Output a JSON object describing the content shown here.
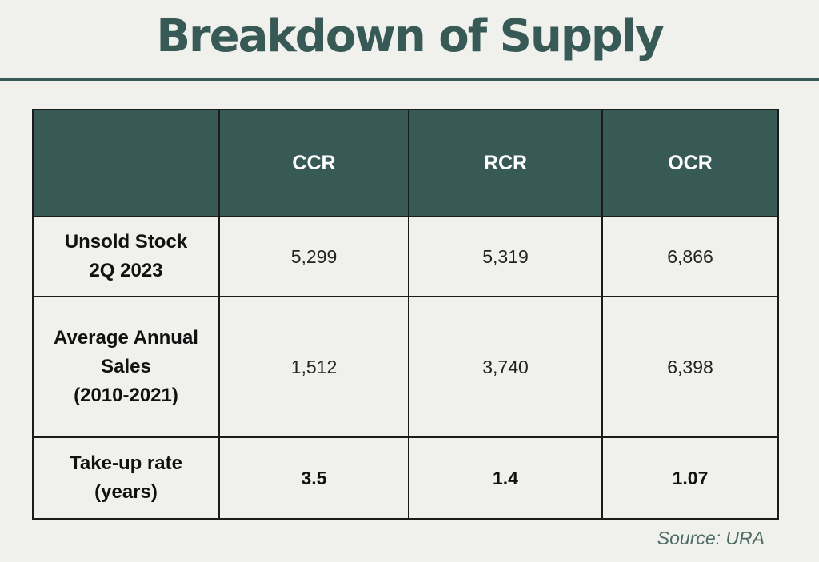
{
  "title": "Breakdown of Supply",
  "colors": {
    "header_bg": "#385a56",
    "title": "#385a56",
    "background": "#f0f0ec"
  },
  "table": {
    "columns": [
      "",
      "CCR",
      "RCR",
      "OCR"
    ],
    "rows": [
      {
        "label_line1": "Unsold Stock",
        "label_line2": "2Q 2023",
        "label_line3": "",
        "values": [
          "5,299",
          "5,319",
          "6,866"
        ]
      },
      {
        "label_line1": "Average Annual",
        "label_line2": "Sales",
        "label_line3": "(2010-2021)",
        "values": [
          "1,512",
          "3,740",
          "6,398"
        ]
      },
      {
        "label_line1": "Take-up rate",
        "label_line2": "(years)",
        "label_line3": "",
        "values": [
          "3.5",
          "1.4",
          "1.07"
        ]
      }
    ]
  },
  "source": "Source: URA"
}
